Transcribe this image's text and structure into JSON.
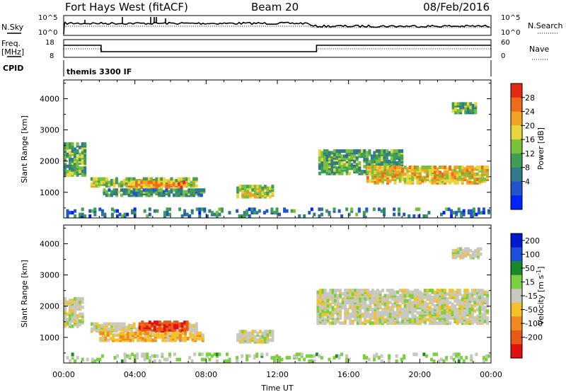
{
  "header": {
    "radar_title": "Fort Hays West (fitACF)",
    "beam": "Beam 20",
    "date": "08/Feb/2016"
  },
  "strips": {
    "nsky": {
      "left_label": "N.Sky",
      "right_label": "N.Search",
      "left_ticks": [
        "10^5",
        "10^0"
      ],
      "right_ticks": [
        "10^5",
        "10^0"
      ]
    },
    "freq": {
      "left_label_top": "Freq.",
      "left_label_unit": "[MHz]",
      "right_label": "Nave",
      "left_ticks": [
        "18",
        "8"
      ],
      "right_ticks": [
        "60",
        "0"
      ]
    },
    "cpid": {
      "label": "CPID",
      "text": "themis 3300 IF"
    }
  },
  "x_axis": {
    "label": "Time UT",
    "range": [
      0,
      24
    ],
    "tick_labels": [
      "00:00",
      "04:00",
      "08:00",
      "12:00",
      "16:00",
      "20:00",
      "00:00"
    ],
    "ticks_hours": [
      0,
      4,
      8,
      12,
      16,
      20,
      24
    ]
  },
  "power_panel": {
    "ylabel": "Slant Range [km]",
    "ylim": [
      180,
      4600
    ],
    "y_ticks": [
      1000,
      2000,
      3000,
      4000
    ],
    "colorbar_label": "Power [dB]",
    "colorbar_ticks": [
      "28",
      "24",
      "20",
      "16",
      "12",
      "8",
      "4"
    ]
  },
  "velocity_panel": {
    "ylabel": "Slant Range [km]",
    "ylim": [
      180,
      4600
    ],
    "y_ticks": [
      1000,
      2000,
      3000,
      4000
    ],
    "colorbar_label": "Velocity [m s",
    "colorbar_label_sup": "-1",
    "colorbar_label_end": "]",
    "colorbar_ticks": [
      "200",
      "100",
      "50",
      "15",
      "-15",
      "-50",
      "-100",
      "-200"
    ]
  },
  "colors": {
    "power_scale": [
      "#0022ff",
      "#2255cc",
      "#337a88",
      "#3f9d55",
      "#77c23a",
      "#e8d63c",
      "#f3a324",
      "#ef6a1a",
      "#e42a14"
    ],
    "velocity_scale": [
      "#0018d0",
      "#1e50e0",
      "#1a8a28",
      "#7ad03e",
      "#c8c8c0",
      "#f3c22a",
      "#f08a20",
      "#e85a18",
      "#e01010"
    ]
  },
  "chart_data": [
    {
      "type": "heatmap",
      "panel": "power",
      "x_unit": "hours UT",
      "y_unit": "km",
      "regions": [
        {
          "t0": 0.0,
          "t1": 1.2,
          "r0": 1500,
          "r1": 2500,
          "v": 14
        },
        {
          "t0": 1.5,
          "t1": 7.4,
          "r0": 1150,
          "r1": 1420,
          "v": 17
        },
        {
          "t0": 3.6,
          "t1": 6.8,
          "r0": 1100,
          "r1": 1300,
          "v": 24
        },
        {
          "t0": 2.2,
          "t1": 7.8,
          "r0": 850,
          "r1": 1050,
          "v": 12
        },
        {
          "t0": 9.7,
          "t1": 11.8,
          "r0": 800,
          "r1": 1150,
          "v": 18
        },
        {
          "t0": 14.3,
          "t1": 19.0,
          "r0": 1550,
          "r1": 2300,
          "v": 13
        },
        {
          "t0": 17.0,
          "t1": 23.9,
          "r0": 1250,
          "r1": 1800,
          "v": 21
        },
        {
          "t0": 21.8,
          "t1": 23.2,
          "r0": 3500,
          "r1": 3800,
          "v": 14
        },
        {
          "t0": 0.0,
          "t1": 24.0,
          "r0": 180,
          "r1": 420,
          "v": 9
        }
      ]
    },
    {
      "type": "heatmap",
      "panel": "velocity",
      "x_unit": "hours UT",
      "y_unit": "km",
      "regions": [
        {
          "t0": 0.0,
          "t1": 1.0,
          "r0": 1300,
          "r1": 2200,
          "v": 0
        },
        {
          "t0": 1.5,
          "t1": 7.4,
          "r0": 1150,
          "r1": 1420,
          "v": -10
        },
        {
          "t0": 4.2,
          "t1": 6.9,
          "r0": 1150,
          "r1": 1450,
          "v": -180
        },
        {
          "t0": 2.0,
          "t1": 7.8,
          "r0": 850,
          "r1": 1100,
          "v": -60
        },
        {
          "t0": 9.7,
          "t1": 11.8,
          "r0": 800,
          "r1": 1150,
          "v": -5
        },
        {
          "t0": 14.2,
          "t1": 24.0,
          "r0": 1400,
          "r1": 2500,
          "v": 0
        },
        {
          "t0": 21.8,
          "t1": 23.4,
          "r0": 3500,
          "r1": 3800,
          "v": 0
        },
        {
          "t0": 0.0,
          "t1": 24.0,
          "r0": 180,
          "r1": 420,
          "v": 40
        }
      ]
    }
  ]
}
